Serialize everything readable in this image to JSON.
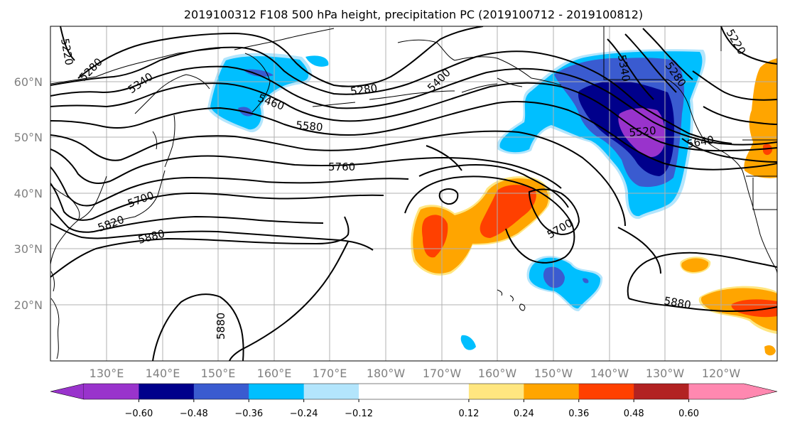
{
  "title": "2019100312 F108 500 hPa height, precipitation PC (2019100712 - 2019100812)",
  "lat_labels": [
    "60°N",
    "50°N",
    "40°N",
    "30°N",
    "20°N"
  ],
  "lon_labels": [
    "130°E",
    "140°E",
    "150°E",
    "160°E",
    "170°E",
    "180°W",
    "170°W",
    "160°W",
    "150°W",
    "140°W",
    "130°W",
    "120°W"
  ],
  "colorbar": {
    "colors": [
      "#9933cc",
      "#00008b",
      "#3a5bd0",
      "#00bfff",
      "#b3e5fc",
      "#ffffff",
      "#ffffff",
      "#ffe680",
      "#ffa500",
      "#ff4000",
      "#b22222",
      "#ff88b0"
    ],
    "extend_min_color": "#9933cc",
    "extend_max_color": "#ff88b0",
    "tick_labels": [
      "−0.60",
      "−0.48",
      "−0.36",
      "−0.24",
      "−0.12",
      "0.12",
      "0.24",
      "0.36",
      "0.48",
      "0.60"
    ]
  },
  "contour_labels": [
    "5220",
    "5280",
    "5340",
    "5460",
    "5280",
    "5400",
    "5580",
    "5760",
    "5700",
    "5820",
    "5880",
    "5700",
    "5340",
    "5280",
    "5520",
    "5640",
    "5220",
    "5880",
    "5880"
  ],
  "colors": {
    "land_line": "#000000",
    "grid": "#b0b0b0",
    "contour": "#000000"
  }
}
